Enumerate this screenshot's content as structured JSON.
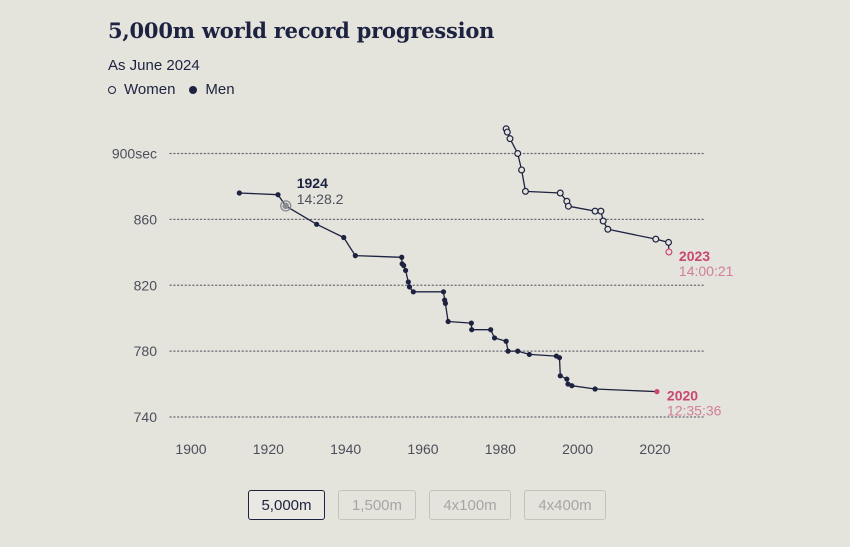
{
  "header": {
    "title": "5,000m world record progression",
    "subtitle": "As June 2024"
  },
  "legend": {
    "women": "Women",
    "men": "Men"
  },
  "chart_data": {
    "type": "line",
    "title": "5,000m world record progression",
    "subtitle": "As June 2024",
    "xlabel": "",
    "ylabel": "sec",
    "xlim": [
      1895,
      2032
    ],
    "ylim": [
      735,
      918
    ],
    "x_ticks": [
      1900,
      1920,
      1940,
      1960,
      1980,
      2000,
      2020
    ],
    "y_ticks": [
      {
        "value": 900,
        "label": "900sec"
      },
      {
        "value": 860,
        "label": "860"
      },
      {
        "value": 820,
        "label": "820"
      },
      {
        "value": 780,
        "label": "780"
      },
      {
        "value": 740,
        "label": "740"
      }
    ],
    "grid": "horizontal-dotted",
    "legend_position": "top-left",
    "series": [
      {
        "name": "Men",
        "marker": "filled",
        "color": "#1d2240",
        "points": [
          [
            1912.5,
            876.0
          ],
          [
            1922.5,
            875.0
          ],
          [
            1924.5,
            868.2
          ],
          [
            1932.5,
            857.0
          ],
          [
            1939.5,
            849.0
          ],
          [
            1942.5,
            838.0
          ],
          [
            1954.5,
            837.0
          ],
          [
            1954.6,
            833.0
          ],
          [
            1955.0,
            832.0
          ],
          [
            1955.5,
            829.0
          ],
          [
            1956.2,
            822.0
          ],
          [
            1956.5,
            819.0
          ],
          [
            1957.5,
            816.0
          ],
          [
            1965.3,
            816.0
          ],
          [
            1965.6,
            811.0
          ],
          [
            1965.8,
            809.0
          ],
          [
            1966.5,
            798.0
          ],
          [
            1972.5,
            797.0
          ],
          [
            1972.6,
            793.0
          ],
          [
            1977.5,
            793.0
          ],
          [
            1978.5,
            788.0
          ],
          [
            1981.5,
            786.0
          ],
          [
            1982.0,
            780.0
          ],
          [
            1984.5,
            780.0
          ],
          [
            1987.5,
            778.0
          ],
          [
            1994.5,
            777.0
          ],
          [
            1995.3,
            776.0
          ],
          [
            1995.5,
            765.0
          ],
          [
            1997.2,
            763.0
          ],
          [
            1997.5,
            760.0
          ],
          [
            1998.5,
            759.0
          ],
          [
            2004.5,
            757.0
          ],
          [
            2020.5,
            755.4
          ]
        ]
      },
      {
        "name": "Women",
        "marker": "open",
        "color": "#1d2240",
        "points": [
          [
            1981.5,
            915.0
          ],
          [
            1981.8,
            913.0
          ],
          [
            1982.5,
            909.0
          ],
          [
            1984.5,
            900.0
          ],
          [
            1985.5,
            890.0
          ],
          [
            1986.5,
            877.0
          ],
          [
            1995.5,
            876.0
          ],
          [
            1997.2,
            871.0
          ],
          [
            1997.6,
            868.0
          ],
          [
            2004.5,
            865.0
          ],
          [
            2006.0,
            865.0
          ],
          [
            2006.6,
            859.0
          ],
          [
            2007.8,
            854.0
          ],
          [
            2020.2,
            848.0
          ],
          [
            2023.5,
            846.0
          ],
          [
            2023.6,
            840.2
          ]
        ]
      }
    ],
    "annotations": [
      {
        "year": "1924",
        "time": "14:28.2",
        "x": 1924.5,
        "y": 868.2,
        "series": "Men",
        "color": "#1d2240"
      },
      {
        "year": "2023",
        "time": "14:00:21",
        "x": 2023.6,
        "y": 840.2,
        "series": "Women",
        "color": "#c94770"
      },
      {
        "year": "2020",
        "time": "12:35:36",
        "x": 2020.5,
        "y": 755.4,
        "series": "Men",
        "color": "#c94770"
      }
    ]
  },
  "colors": {
    "background": "#e4e3dc",
    "ink": "#1d2240",
    "highlight": "#c94770",
    "grid": "#6b6d77",
    "axis_label": "#4c4f5c"
  },
  "distance_buttons": [
    {
      "label": "5,000m",
      "active": true
    },
    {
      "label": "1,500m",
      "active": false
    },
    {
      "label": "4x100m",
      "active": false
    },
    {
      "label": "4x400m",
      "active": false
    }
  ]
}
